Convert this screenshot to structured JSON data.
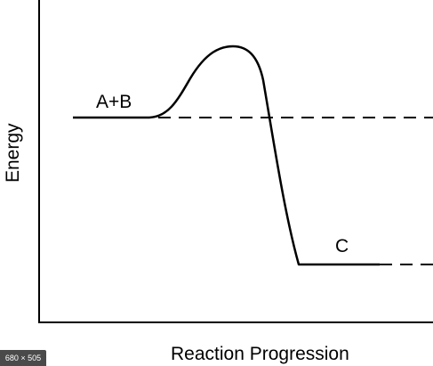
{
  "diagram": {
    "y_axis_label": "Energy",
    "x_axis_label": "Reaction Progression",
    "reactant_label": "A+B",
    "product_label": "C"
  },
  "badge": {
    "image_size_text": "680 × 505"
  }
}
